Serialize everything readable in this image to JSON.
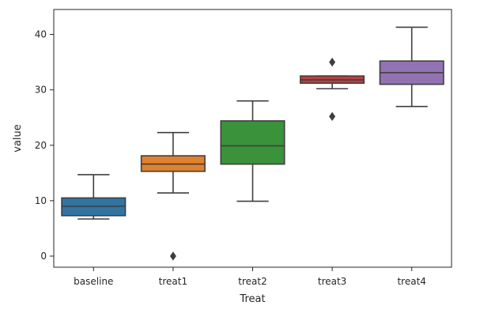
{
  "chart_data": {
    "type": "box",
    "title": "",
    "xlabel": "Treat",
    "ylabel": "value",
    "ylim": [
      -2,
      44.5
    ],
    "yticks": [
      0,
      10,
      20,
      30,
      40
    ],
    "grid": false,
    "categories": [
      "baseline",
      "treat1",
      "treat2",
      "treat3",
      "treat4"
    ],
    "colors": [
      "#3274a1",
      "#e1812c",
      "#3a923a",
      "#c03d3e",
      "#9372b2"
    ],
    "boxes": [
      {
        "name": "baseline",
        "whisker_low": 6.7,
        "q1": 7.3,
        "median": 9.0,
        "q3": 10.5,
        "whisker_high": 14.7,
        "outliers": []
      },
      {
        "name": "treat1",
        "whisker_low": 11.4,
        "q1": 15.3,
        "median": 16.6,
        "q3": 18.1,
        "whisker_high": 22.3,
        "outliers": [
          0.0
        ]
      },
      {
        "name": "treat2",
        "whisker_low": 9.9,
        "q1": 16.6,
        "median": 19.9,
        "q3": 24.4,
        "whisker_high": 28.0,
        "outliers": []
      },
      {
        "name": "treat3",
        "whisker_low": 30.2,
        "q1": 31.2,
        "median": 31.8,
        "q3": 32.5,
        "whisker_high": 32.5,
        "outliers": [
          35.0,
          25.2
        ]
      },
      {
        "name": "treat4",
        "whisker_low": 27.0,
        "q1": 31.0,
        "median": 33.1,
        "q3": 35.2,
        "whisker_high": 41.3,
        "outliers": []
      }
    ]
  }
}
